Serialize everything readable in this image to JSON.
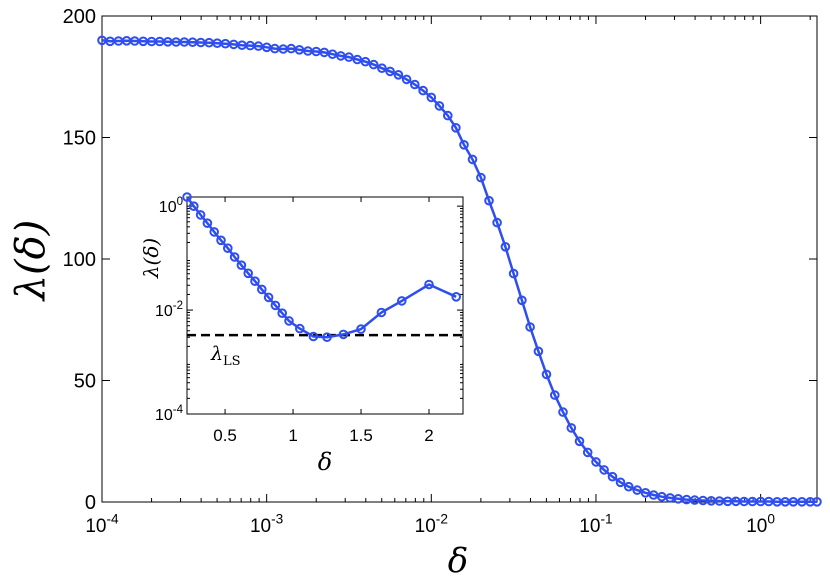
{
  "chart_data": [
    {
      "type": "line",
      "ylabel": "λ(δ)",
      "xlabel": "δ",
      "xscale": "log",
      "xlim": [
        0.0001,
        2.2
      ],
      "ylim": [
        0,
        200
      ],
      "grid": false,
      "xtick_labels": [
        {
          "base": "10",
          "exp": "-4",
          "value": 0.0001
        },
        {
          "base": "10",
          "exp": "-3",
          "value": 0.001
        },
        {
          "base": "10",
          "exp": "-2",
          "value": 0.01
        },
        {
          "base": "10",
          "exp": "-1",
          "value": 0.1
        },
        {
          "base": "10",
          "exp": "0",
          "value": 1
        }
      ],
      "yticks": [
        0,
        50,
        100,
        150,
        200
      ],
      "series": [
        {
          "color": "#2f4ef0",
          "marker": "circle",
          "x": [
            0.0001,
            0.000112,
            0.000126,
            0.000141,
            0.000158,
            0.000178,
            0.0002,
            0.000224,
            0.000251,
            0.000282,
            0.000316,
            0.000355,
            0.000398,
            0.000447,
            0.000501,
            0.000562,
            0.000631,
            0.000708,
            0.000794,
            0.000891,
            0.001,
            0.00112,
            0.00126,
            0.00141,
            0.00158,
            0.00178,
            0.002,
            0.00224,
            0.00251,
            0.00282,
            0.00316,
            0.00355,
            0.00398,
            0.00447,
            0.00501,
            0.00562,
            0.00631,
            0.00708,
            0.00794,
            0.00891,
            0.01,
            0.0112,
            0.0126,
            0.0141,
            0.0158,
            0.0178,
            0.02,
            0.0224,
            0.0251,
            0.0282,
            0.0316,
            0.0355,
            0.0398,
            0.0447,
            0.0501,
            0.0562,
            0.0631,
            0.0708,
            0.0794,
            0.0891,
            0.1,
            0.112,
            0.126,
            0.141,
            0.158,
            0.178,
            0.2,
            0.224,
            0.251,
            0.282,
            0.316,
            0.355,
            0.398,
            0.447,
            0.501,
            0.562,
            0.631,
            0.708,
            0.794,
            0.891,
            1.0,
            1.12,
            1.26,
            1.41,
            1.58,
            1.78,
            2.0,
            2.2
          ],
          "y": [
            190,
            189.6,
            189.7,
            189.8,
            189.7,
            189.6,
            189.5,
            189.5,
            189.4,
            189.3,
            189.3,
            189.2,
            189.1,
            189,
            188.8,
            188.6,
            188.3,
            188,
            187.8,
            187.6,
            187.1,
            186.6,
            186.4,
            186.6,
            186.1,
            185.6,
            185.4,
            185,
            184.3,
            183.6,
            183.1,
            182.1,
            181.2,
            180,
            178.5,
            177.2,
            175.8,
            173.9,
            171.8,
            169.3,
            166.5,
            163,
            159,
            154,
            147,
            141,
            133.5,
            124,
            115,
            105,
            94,
            83,
            72,
            62,
            52.5,
            44,
            37,
            30.5,
            25,
            20.4,
            16.5,
            13.2,
            10.4,
            8.1,
            6.3,
            4.9,
            3.8,
            2.9,
            2.2,
            1.7,
            1.3,
            1.0,
            0.8,
            0.6,
            0.5,
            0.4,
            0.3,
            0.3,
            0.2,
            0.2,
            0.2,
            0.2,
            0.1,
            0.1,
            0.1,
            0.1,
            0.1,
            0.1
          ]
        }
      ]
    },
    {
      "type": "line",
      "ylabel": "λ(δ)",
      "xlabel": "δ",
      "yscale": "log",
      "xlim": [
        0.22,
        2.25
      ],
      "ylim": [
        0.0001,
        1.5
      ],
      "grid": false,
      "xticks": [
        0.5,
        1,
        1.5,
        2
      ],
      "xtick_labels": [
        "0.5",
        "1",
        "1.5",
        "2"
      ],
      "ytick_labels": [
        {
          "base": "10",
          "exp": "-4",
          "value": 0.0001
        },
        {
          "base": "10",
          "exp": "-2",
          "value": 0.01
        },
        {
          "base": "10",
          "exp": "0",
          "value": 1
        }
      ],
      "series": [
        {
          "color": "#2f4ef0",
          "marker": "circle",
          "x": [
            0.22,
            0.27,
            0.32,
            0.37,
            0.42,
            0.47,
            0.52,
            0.57,
            0.62,
            0.67,
            0.72,
            0.77,
            0.82,
            0.87,
            0.92,
            0.97,
            1.05,
            1.15,
            1.25,
            1.37,
            1.5,
            1.65,
            1.8,
            2.0,
            2.2
          ],
          "y": [
            1.5,
            1.0,
            0.68,
            0.47,
            0.32,
            0.22,
            0.155,
            0.105,
            0.073,
            0.051,
            0.036,
            0.025,
            0.0175,
            0.0123,
            0.0087,
            0.0062,
            0.0044,
            0.0031,
            0.003,
            0.0034,
            0.0043,
            0.009,
            0.015,
            0.031,
            0.018
          ]
        }
      ],
      "reference_line": {
        "label_base": "λ",
        "label_sub": "LS",
        "value": 0.0033,
        "style": "dashed"
      }
    }
  ]
}
